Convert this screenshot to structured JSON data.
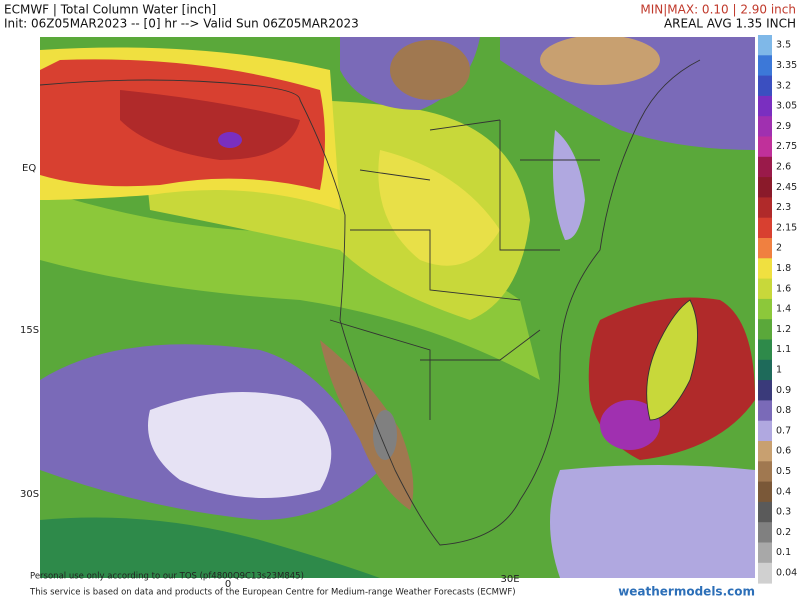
{
  "header": {
    "title": "ECMWF | Total Column Water [inch]",
    "init": "Init: 06Z05MAR2023 -- [0] hr --> Valid Sun 06Z05MAR2023",
    "minmax": "MIN|MAX: 0.10 | 2.90 inch",
    "areal_avg": "AREAL AVG 1.35 INCH"
  },
  "map": {
    "lat_labels": [
      "EQ",
      "15S",
      "30S"
    ],
    "lon_labels": [
      "0",
      "30E"
    ]
  },
  "colorbar": {
    "labels": [
      "3.5",
      "3.35",
      "3.2",
      "3.05",
      "2.9",
      "2.75",
      "2.6",
      "2.45",
      "2.3",
      "2.15",
      "2",
      "1.8",
      "1.6",
      "1.4",
      "1.2",
      "1.1",
      "1",
      "0.9",
      "0.8",
      "0.7",
      "0.6",
      "0.5",
      "0.4",
      "0.3",
      "0.2",
      "0.1",
      "0.04"
    ],
    "colors": [
      "#7fb8e8",
      "#3c78d8",
      "#3b4fc0",
      "#7a2fc0",
      "#a030b0",
      "#c0309a",
      "#9a1a4a",
      "#8a1a2a",
      "#b02a2a",
      "#d84030",
      "#f08040",
      "#f0e040",
      "#c8d83a",
      "#8cc83a",
      "#5aa83a",
      "#2e8a4a",
      "#1e6a5a",
      "#3a3a7a",
      "#7a6ab8",
      "#b0a8e0",
      "#c8a070",
      "#a07850",
      "#7a5838",
      "#5a5a5a",
      "#808080",
      "#a8a8a8",
      "#d0d0d0"
    ]
  },
  "footer": {
    "tos": "Personal use only according to our TOS (pf4800Q9C13s23M845)",
    "credit": "This service is based on data and products of the European Centre for Medium-range Weather Forecasts (ECMWF)",
    "site": "weathermodels.com"
  }
}
